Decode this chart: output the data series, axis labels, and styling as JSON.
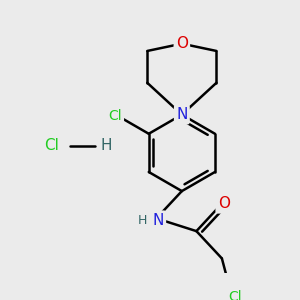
{
  "bg_color": "#ebebeb",
  "atom_colors": {
    "C": "#000000",
    "N": "#2020dd",
    "O": "#dd0000",
    "Cl": "#22cc22",
    "H": "#336666"
  },
  "bond_color": "#000000",
  "bond_width": 1.8
}
